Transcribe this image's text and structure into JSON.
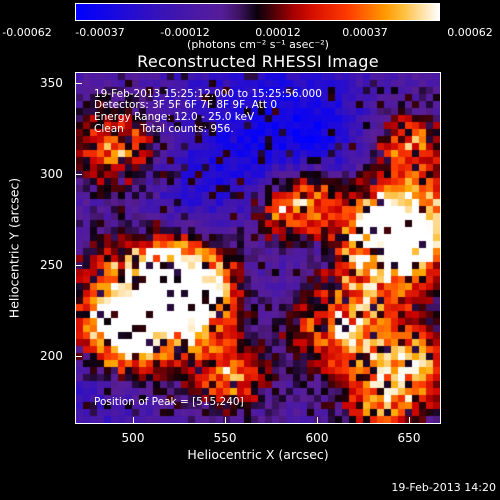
{
  "colorbar": {
    "labels": [
      "-0.00062",
      "-0.00037",
      "-0.00012",
      "0.00012",
      "0.00037",
      "0.00062"
    ],
    "units": "(photons cm⁻² s⁻¹ asec⁻²)"
  },
  "title": "Reconstructed RHESSI Image",
  "info": {
    "time_range": "19-Feb-2013 15:25:12.000 to 15:25:56.000",
    "detectors": "Detectors: 3F 5F 6F 7F 8F 9F, Att 0",
    "energy": "Energy Range: 12.0 - 25.0 keV",
    "clean": "Clean     Total counts: 956.",
    "peak": "Position of Peak = [515,240]"
  },
  "axes": {
    "xlabel": "Heliocentric X (arcsec)",
    "ylabel": "Heliocentric Y (arcsec)",
    "xticks": [
      "500",
      "550",
      "600",
      "650"
    ],
    "yticks": [
      "350",
      "300",
      "250",
      "200"
    ]
  },
  "timestamp": "19-Feb-2013 14:20",
  "colors": {
    "negative": "#0000ff",
    "mid": "#5a1e9e",
    "positive": "#ff2000",
    "max": "#ffffff"
  }
}
